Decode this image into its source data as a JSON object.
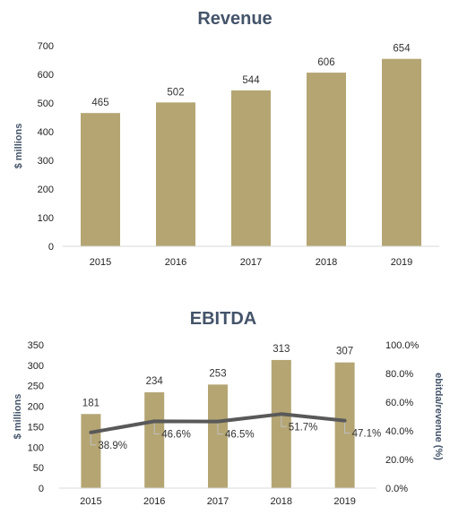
{
  "chart_data": [
    {
      "type": "bar",
      "title": "Revenue",
      "categories": [
        "2015",
        "2016",
        "2017",
        "2018",
        "2019"
      ],
      "values": [
        465,
        502,
        544,
        606,
        654
      ],
      "data_labels": [
        "465",
        "502",
        "544",
        "606",
        "654"
      ],
      "ylabel": "$ millions",
      "ylim": [
        0,
        700
      ],
      "yticks": [
        "0",
        "100",
        "200",
        "300",
        "400",
        "500",
        "600",
        "700"
      ],
      "grid": false,
      "colors": {
        "bar": "#b4a573",
        "axis": "#d9d9d9"
      }
    },
    {
      "type": "bar",
      "title": "EBITDA",
      "categories": [
        "2015",
        "2016",
        "2017",
        "2018",
        "2019"
      ],
      "series": [
        {
          "kind": "bar",
          "axis": "left",
          "values": [
            181,
            234,
            253,
            313,
            307
          ],
          "data_labels": [
            "181",
            "234",
            "253",
            "313",
            "307"
          ]
        },
        {
          "kind": "line",
          "axis": "right",
          "values": [
            38.9,
            46.6,
            46.5,
            51.7,
            47.1
          ],
          "data_labels": [
            "38.9%",
            "46.6%",
            "46.5%",
            "51.7%",
            "47.1%"
          ]
        }
      ],
      "ylabel": "$ millions",
      "ylim": [
        0,
        350
      ],
      "yticks": [
        "0",
        "50",
        "100",
        "150",
        "200",
        "250",
        "300",
        "350"
      ],
      "y2label": "ebitda/revenue (%)",
      "y2lim": [
        0,
        100
      ],
      "y2ticks": [
        "0.0%",
        "20.0%",
        "40.0%",
        "60.0%",
        "80.0%",
        "100.0%"
      ],
      "grid": false,
      "colors": {
        "bar": "#b4a573",
        "line": "#595959",
        "leader": "#bfbfbf",
        "axis": "#d9d9d9"
      }
    }
  ]
}
